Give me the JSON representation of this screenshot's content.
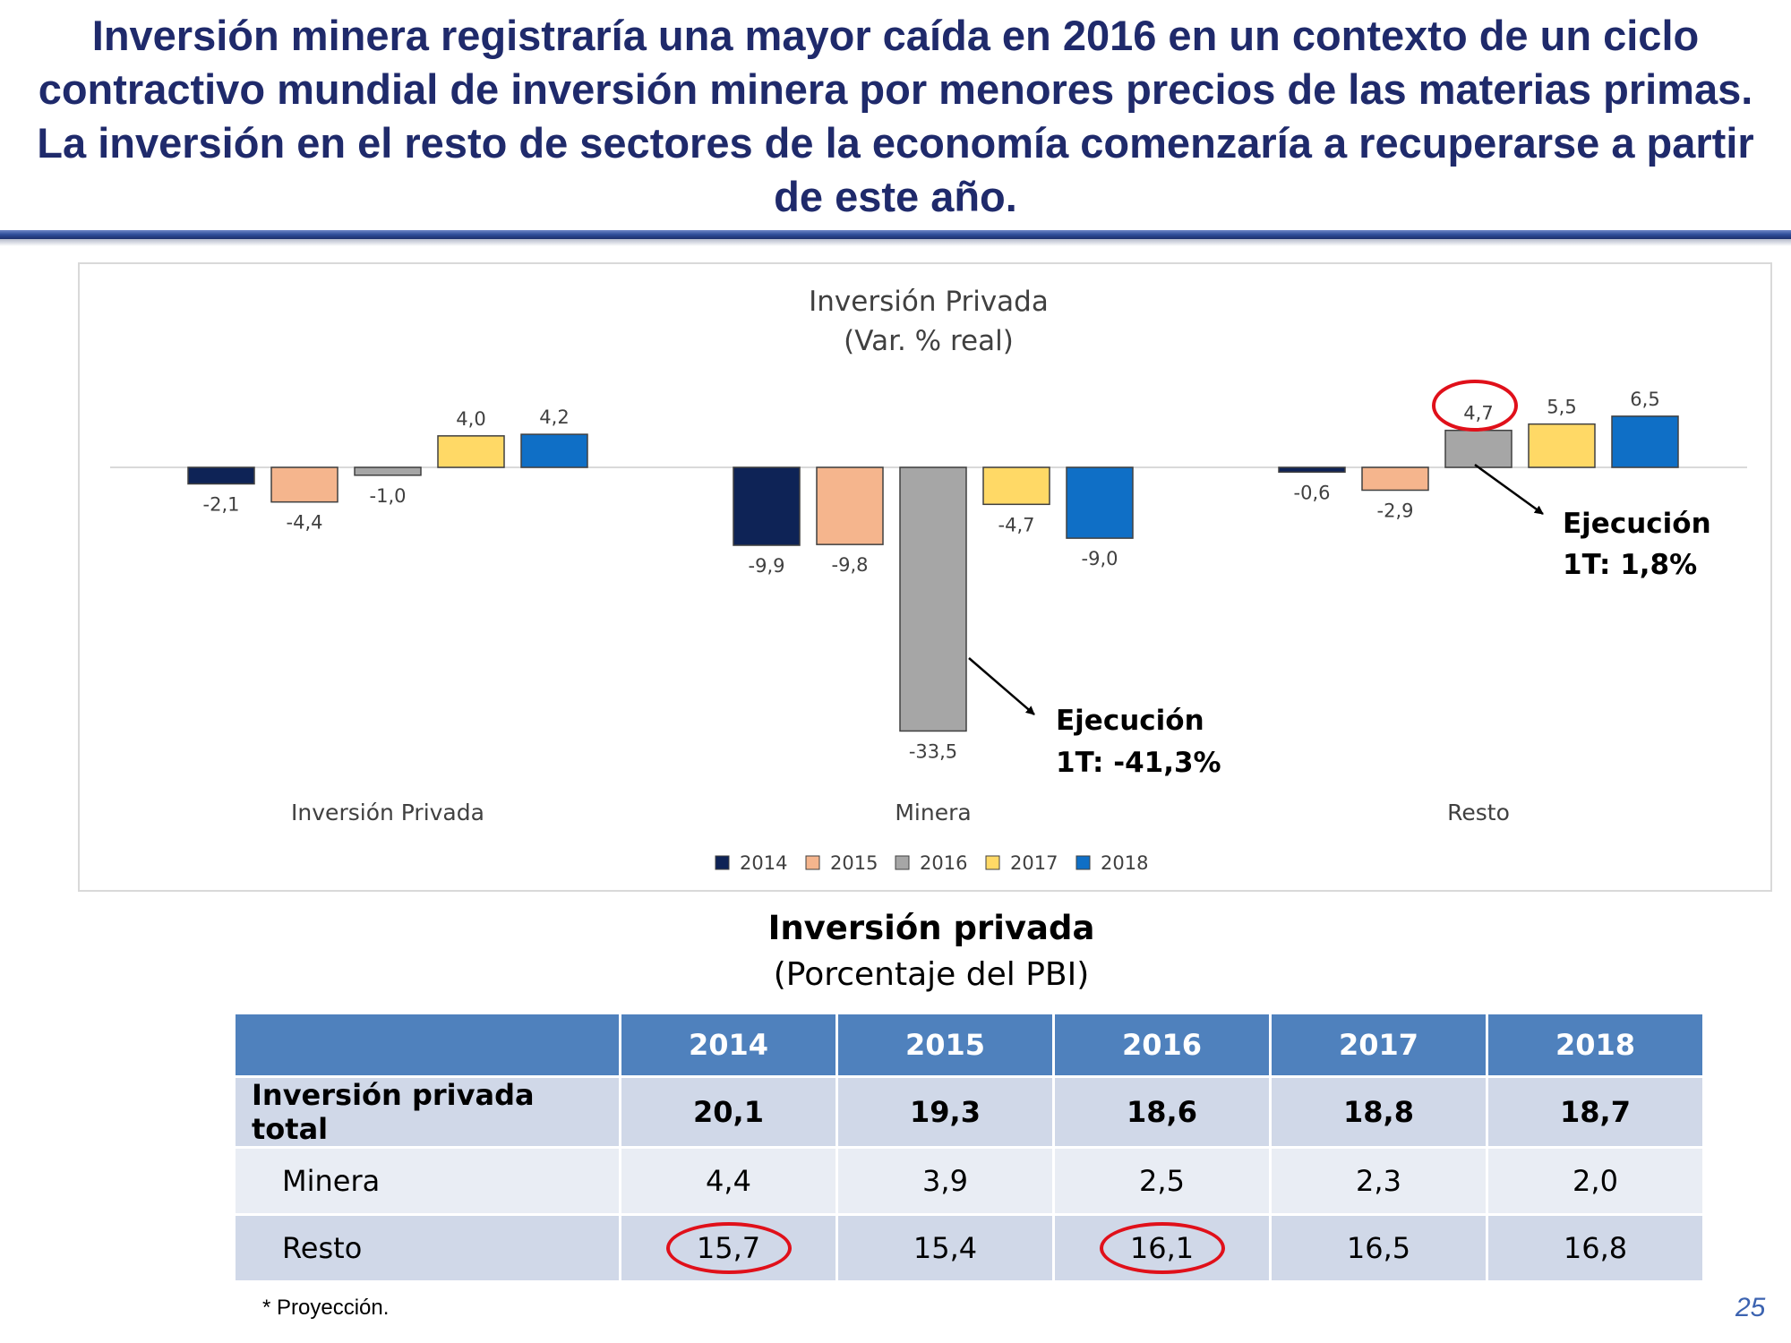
{
  "slide": {
    "headline": "Inversión minera registraría una mayor caída en 2016 en un contexto de un ciclo contractivo mundial de inversión minera por menores precios de las materias primas. La inversión en el resto de sectores de la economía comenzaría a recuperarse a partir de este año.",
    "footnote": "* Proyección.",
    "page_number": "25"
  },
  "chart_data": {
    "type": "bar",
    "title": "Inversión Privada",
    "subtitle": "(Var. % real)",
    "categories": [
      "Inversión Privada",
      "Minera",
      "Resto"
    ],
    "series": [
      {
        "name": "2014",
        "color": "#0e2356",
        "values": [
          -2.1,
          -9.9,
          -0.6
        ],
        "labels": [
          "-2,1",
          "-9,9",
          "-0,6"
        ]
      },
      {
        "name": "2015",
        "color": "#f5b58d",
        "values": [
          -4.4,
          -9.8,
          -2.9
        ],
        "labels": [
          "-4,4",
          "-9,8",
          "-2,9"
        ]
      },
      {
        "name": "2016",
        "color": "#a6a6a6",
        "values": [
          -1.0,
          -33.5,
          4.7
        ],
        "labels": [
          "-1,0",
          "-33,5",
          "4,7"
        ]
      },
      {
        "name": "2017",
        "color": "#ffd966",
        "values": [
          4.0,
          -4.7,
          5.5
        ],
        "labels": [
          "4,0",
          "-4,7",
          "5,5"
        ]
      },
      {
        "name": "2018",
        "color": "#0f6fc6",
        "values": [
          4.2,
          -9.0,
          6.5
        ],
        "labels": [
          "4,2",
          "-9,0",
          "6,5"
        ]
      }
    ],
    "ylim": [
      -33.5,
      6.5
    ],
    "grid": false,
    "legend": "bottom",
    "annotations": [
      {
        "line1": "Ejecución",
        "line2": "1T: -41,3%",
        "target": "Minera 2016"
      },
      {
        "line1": "Ejecución",
        "line2": "1T: 1,8%",
        "target": "Resto 2016"
      }
    ],
    "highlight": "Resto 2016"
  },
  "table": {
    "title": "Inversión privada",
    "subtitle": "(Porcentaje del PBI)",
    "columns": [
      "2014",
      "2015",
      "2016",
      "2017",
      "2018"
    ],
    "rows": [
      {
        "label": "Inversión privada total",
        "values": [
          "20,1",
          "19,3",
          "18,6",
          "18,8",
          "18,7"
        ]
      },
      {
        "label": "Minera",
        "values": [
          "4,4",
          "3,9",
          "2,5",
          "2,3",
          "2,0"
        ]
      },
      {
        "label": "Resto",
        "values": [
          "15,7",
          "15,4",
          "16,1",
          "16,5",
          "16,8"
        ]
      }
    ],
    "circled": [
      "Resto 2014",
      "Resto 2016"
    ]
  },
  "colors": {
    "headline": "#1f2a6b",
    "table_header": "#4f81bd",
    "highlight_ring": "#e0101a"
  }
}
